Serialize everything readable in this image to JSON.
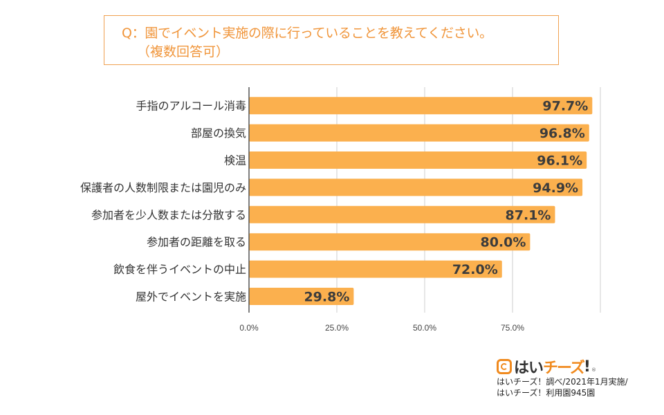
{
  "question": {
    "line1": "Q：園でイベント実施の際に行っていることを教えてください。",
    "line2": "（複数回答可）"
  },
  "chart_data": {
    "type": "bar",
    "orientation": "horizontal",
    "title": "Q：園でイベント実施の際に行っていることを教えてください。（複数回答可）",
    "categories": [
      "手指のアルコール消毒",
      "部屋の換気",
      "検温",
      "保護者の人数制限または園児のみ",
      "参加者を少人数または分散する",
      "参加者の距離を取る",
      "飲食を伴うイベントの中止",
      "屋外でイベントを実施"
    ],
    "values": [
      97.7,
      96.8,
      96.1,
      94.9,
      87.1,
      80.0,
      72.0,
      29.8
    ],
    "data_labels": [
      "97.7%",
      "96.8%",
      "96.1%",
      "94.9%",
      "87.1%",
      "80.0%",
      "72.0%",
      "29.8%"
    ],
    "xlim": [
      0,
      100
    ],
    "x_ticks": [
      0,
      25,
      50,
      75,
      100
    ],
    "x_tick_labels": [
      "0.0%",
      "25.0%",
      "50.0%",
      "75.0%",
      ""
    ],
    "xlabel": "",
    "ylabel": "",
    "grid": true,
    "legend": "none",
    "bar_color": "#FBB04E",
    "label_color": "#3C3C3C"
  },
  "footer": {
    "logo_hai": "はい",
    "logo_cheese": "チーズ",
    "logo_excl": "!",
    "logo_reg": "®",
    "credit_line1": "はいチーズ！調べ/2021年1月実施/",
    "credit_line2": "はいチーズ！利用園945園"
  }
}
